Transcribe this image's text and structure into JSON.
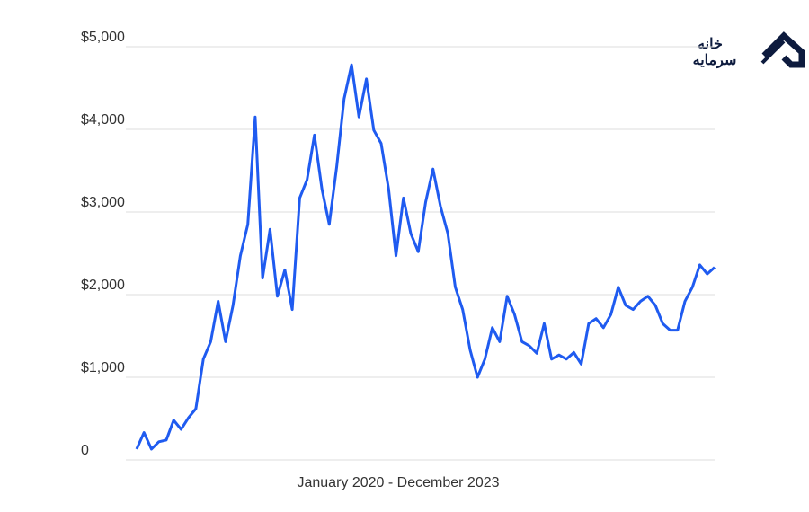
{
  "chart_data": {
    "type": "line",
    "xlabel": "January 2020 - December 2023",
    "values": [
      130,
      330,
      130,
      220,
      240,
      480,
      370,
      510,
      620,
      1220,
      1430,
      1920,
      1430,
      1870,
      2470,
      2850,
      4150,
      2200,
      2790,
      1980,
      2300,
      1820,
      3170,
      3390,
      3930,
      3280,
      2850,
      3550,
      4370,
      4780,
      4150,
      4610,
      3990,
      3830,
      3280,
      2470,
      3170,
      2740,
      2520,
      3120,
      3520,
      3070,
      2740,
      2090,
      1820,
      1330,
      1000,
      1220,
      1600,
      1430,
      1980,
      1760,
      1430,
      1380,
      1290,
      1650,
      1220,
      1270,
      1220,
      1300,
      1160,
      1650,
      1710,
      1600,
      1760,
      2090,
      1870,
      1820,
      1920,
      1980,
      1870,
      1650,
      1570,
      1570,
      1920,
      2090,
      2360,
      2250,
      2330
    ],
    "color": "#1f5bf0",
    "ylim": [
      0,
      5000
    ],
    "yticks": [
      0,
      {
        "value": 1000,
        "label": "$1,000"
      },
      {
        "value": 2000,
        "label": "$2,000"
      },
      {
        "value": 3000,
        "label": "$3,000"
      },
      {
        "value": 4000,
        "label": "$4,000"
      },
      {
        "value": 5000,
        "label": "$5,000"
      }
    ],
    "grid": true
  },
  "logo": {
    "line1": "خانه",
    "line2": "سرمایه"
  }
}
